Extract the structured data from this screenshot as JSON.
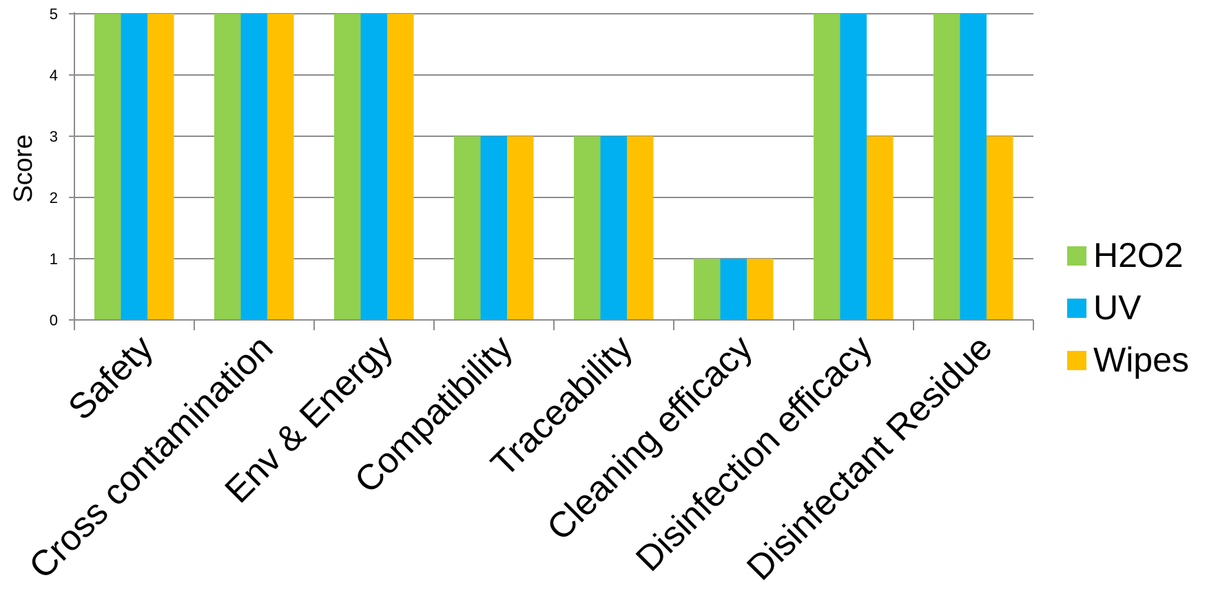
{
  "chart_data": {
    "type": "bar",
    "categories": [
      "Safety",
      "Cross contamination",
      "Env & Energy",
      "Compatibility",
      "Traceability",
      "Cleaning efficacy",
      "Disinfection efficacy",
      "Disinfectant Residue"
    ],
    "series": [
      {
        "name": "H2O2",
        "color": "#92D050",
        "values": [
          5,
          5,
          5,
          3,
          3,
          1,
          5,
          5
        ]
      },
      {
        "name": "UV",
        "color": "#00B0F0",
        "values": [
          5,
          5,
          5,
          3,
          3,
          1,
          5,
          5
        ]
      },
      {
        "name": "Wipes",
        "color": "#FFC000",
        "values": [
          5,
          5,
          5,
          3,
          3,
          1,
          3,
          3
        ]
      }
    ],
    "ylabel": "Score",
    "ylim": [
      0,
      5
    ],
    "yticks": [
      "0",
      "1",
      "2",
      "3",
      "4",
      "5"
    ],
    "grid": true,
    "legend_position": "right"
  }
}
